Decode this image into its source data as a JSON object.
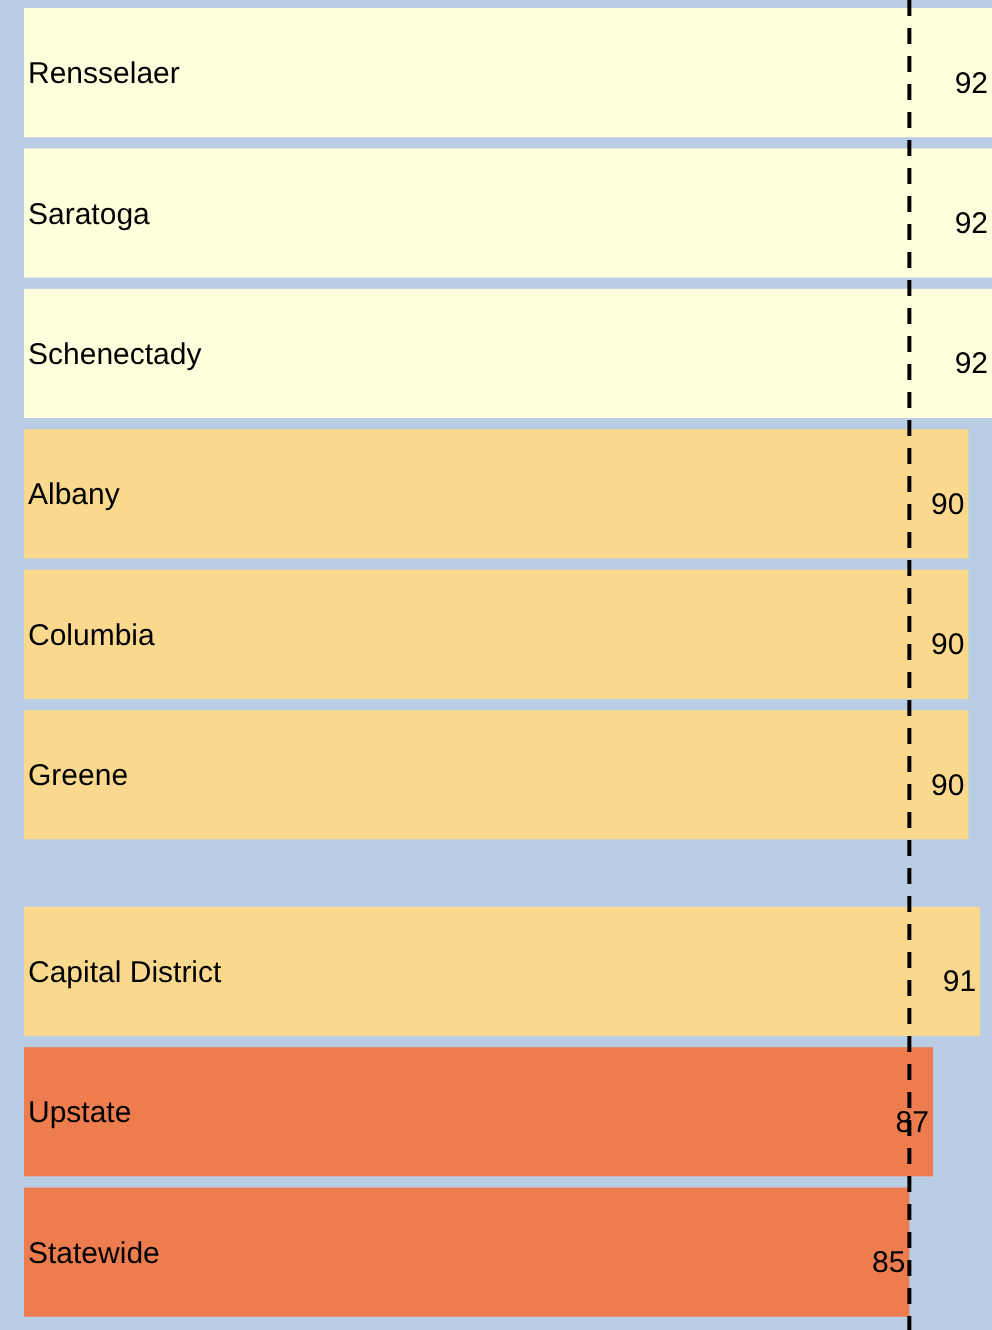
{
  "chart_data": {
    "type": "bar",
    "orientation": "horizontal",
    "categories": [
      "Rensselaer",
      "Saratoga",
      "Schenectady",
      "Albany",
      "Columbia",
      "Greene",
      null,
      "Capital District",
      "Upstate",
      "Statewide"
    ],
    "values": [
      92,
      92,
      92,
      90,
      90,
      90,
      null,
      91,
      87,
      85
    ],
    "colors": [
      "#ffffdd",
      "#ffffdd",
      "#ffffdd",
      "#fad98f",
      "#fad98f",
      "#fad98f",
      null,
      "#fad98f",
      "#ed7d4f",
      "#ed7d4f"
    ],
    "xlim": [
      10,
      92
    ],
    "tick_labels": "y",
    "data_labels": true,
    "ref_lines": [
      {
        "axis": "x",
        "value": 85,
        "color": "#000000",
        "line_style": "dashed"
      }
    ]
  }
}
